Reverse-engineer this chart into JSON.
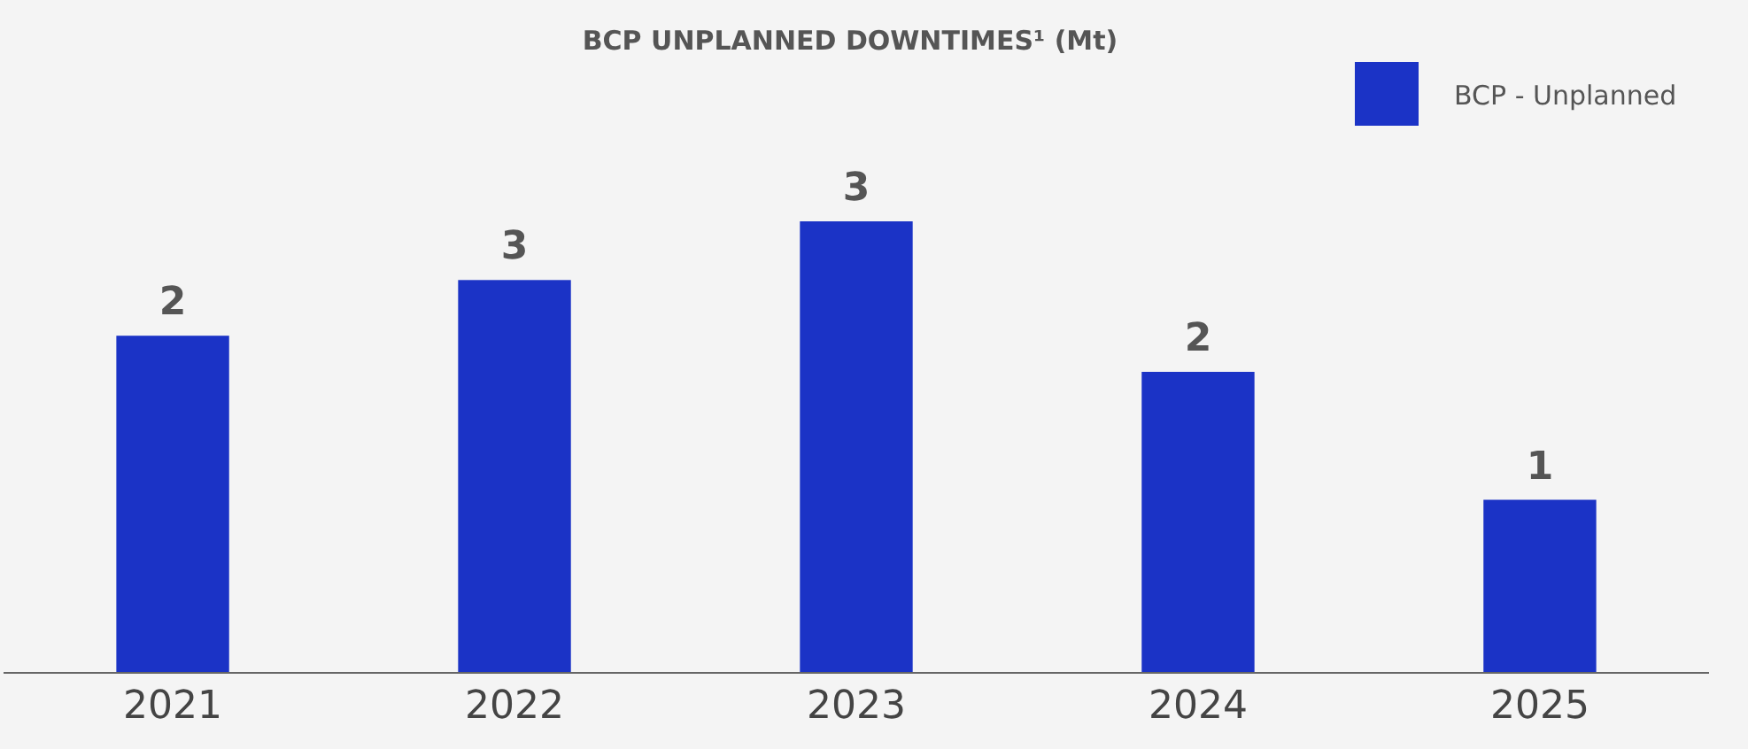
{
  "chart_data": {
    "type": "bar",
    "title": "BCP UNPLANNED DOWNTIMES¹ (Mt)",
    "categories": [
      "2021",
      "2022",
      "2023",
      "2024",
      "2025"
    ],
    "series": [
      {
        "name": "BCP - Unplanned",
        "color": "#1b33c6",
        "values": [
          2.24,
          2.61,
          3.0,
          2.0,
          1.15
        ],
        "value_labels": [
          "2",
          "3",
          "3",
          "2",
          "1"
        ]
      }
    ],
    "legend": "top right",
    "grid": false
  }
}
